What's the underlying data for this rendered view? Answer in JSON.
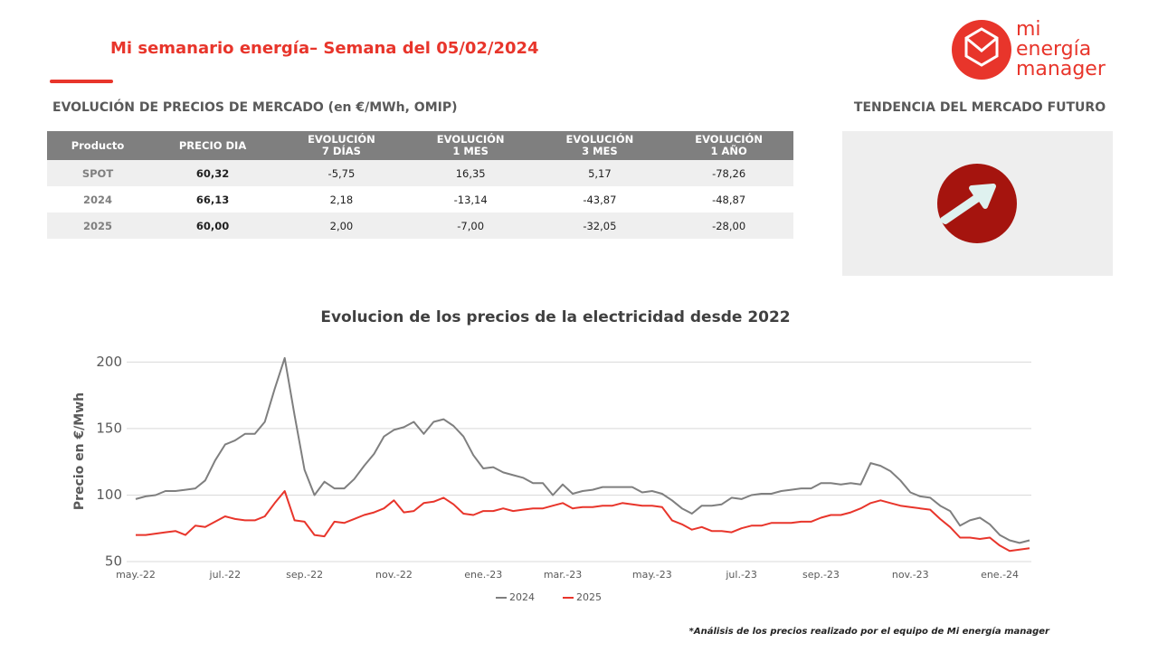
{
  "header": {
    "title": "Mi semanario energía– Semana del 05/02/2024",
    "logo": [
      "mi",
      "energía",
      "manager"
    ]
  },
  "table": {
    "title": "EVOLUCIÓN DE PRECIOS DE MERCADO (en €/MWh, OMIP)",
    "columns": [
      [
        "Producto"
      ],
      [
        "PRECIO DIA"
      ],
      [
        "EVOLUCIÓN",
        "7 DÍAS"
      ],
      [
        "EVOLUCIÓN",
        "1 MES"
      ],
      [
        "EVOLUCIÓN",
        "3 MES"
      ],
      [
        "EVOLUCIÓN",
        "1 AÑO"
      ]
    ],
    "rows": [
      [
        "SPOT",
        "60,32",
        "-5,75",
        "16,35",
        "5,17",
        "-78,26"
      ],
      [
        "2024",
        "66,13",
        "2,18",
        "-13,14",
        "-43,87",
        "-48,87"
      ],
      [
        "2025",
        "60,00",
        "2,00",
        "-7,00",
        "-32,05",
        "-28,00"
      ]
    ]
  },
  "trend": {
    "title": "TENDENCIA DEL MERCADO FUTURO"
  },
  "chart_data": {
    "type": "line",
    "title": "Evolucion de los precios de la electricidad desde 2022",
    "y_label": "Precio en €/Mwh",
    "categories": [
      "may.-22",
      null,
      null,
      null,
      null,
      null,
      null,
      null,
      null,
      "jul.-22",
      null,
      null,
      null,
      null,
      null,
      null,
      null,
      "sep.-22",
      null,
      null,
      null,
      null,
      null,
      null,
      null,
      null,
      "nov.-22",
      null,
      null,
      null,
      null,
      null,
      null,
      null,
      null,
      "ene.-23",
      null,
      null,
      null,
      null,
      null,
      null,
      null,
      "mar.-23",
      null,
      null,
      null,
      null,
      null,
      null,
      null,
      null,
      "may.-23",
      null,
      null,
      null,
      null,
      null,
      null,
      null,
      null,
      "jul.-23",
      null,
      null,
      null,
      null,
      null,
      null,
      null,
      "sep.-23",
      null,
      null,
      null,
      null,
      null,
      null,
      null,
      null,
      "nov.-23",
      null,
      null,
      null,
      null,
      null,
      null,
      null,
      null,
      "ene.-24",
      null,
      null,
      null
    ],
    "series": [
      {
        "name": "2024",
        "color": "#7f7f7f",
        "values": [
          97,
          99,
          100,
          103,
          103,
          104,
          105,
          111,
          126,
          138,
          141,
          146,
          146,
          155,
          180,
          203,
          160,
          119,
          100,
          110,
          105,
          105,
          112,
          122,
          131,
          144,
          149,
          151,
          155,
          146,
          155,
          157,
          152,
          144,
          130,
          120,
          121,
          117,
          115,
          113,
          109,
          109,
          100,
          108,
          101,
          103,
          104,
          106,
          106,
          106,
          106,
          102,
          103,
          101,
          96,
          90,
          86,
          92,
          92,
          93,
          98,
          97,
          100,
          101,
          101,
          103,
          104,
          105,
          105,
          109,
          109,
          108,
          109,
          108,
          124,
          122,
          118,
          111,
          102,
          99,
          98,
          92,
          88,
          77,
          81,
          83,
          78,
          70,
          66,
          64,
          66
        ]
      },
      {
        "name": "2025",
        "color": "#e8352b",
        "values": [
          70,
          70,
          71,
          72,
          73,
          70,
          77,
          76,
          80,
          84,
          82,
          81,
          81,
          84,
          94,
          103,
          81,
          80,
          70,
          69,
          80,
          79,
          82,
          85,
          87,
          90,
          96,
          87,
          88,
          94,
          95,
          98,
          93,
          86,
          85,
          88,
          88,
          90,
          88,
          89,
          90,
          90,
          92,
          94,
          90,
          91,
          91,
          92,
          92,
          94,
          93,
          92,
          92,
          91,
          81,
          78,
          74,
          76,
          73,
          73,
          72,
          75,
          77,
          77,
          79,
          79,
          79,
          80,
          80,
          83,
          85,
          85,
          87,
          90,
          94,
          96,
          94,
          92,
          91,
          90,
          89,
          82,
          76,
          68,
          68,
          67,
          68,
          62,
          58,
          59,
          60
        ]
      }
    ],
    "ylim": [
      50,
      205
    ],
    "yticks": [
      50,
      100,
      150,
      200
    ],
    "grid": true,
    "legend": "bottom"
  },
  "footnote": "*Análisis de los precios realizado por el equipo de Mi energía manager"
}
